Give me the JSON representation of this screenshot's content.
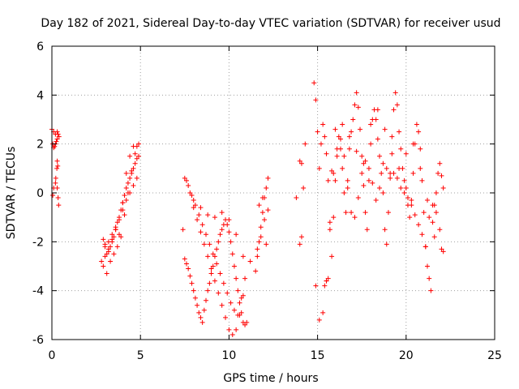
{
  "chart_data": {
    "type": "scatter",
    "title": "Day 182 of 2021, Sidereal Day-to-day VTEC variation (SDTVAR) for receiver usud",
    "xlabel": "GPS time / hours",
    "ylabel": "SDTVAR / TECUs",
    "xlim": [
      0,
      25
    ],
    "ylim": [
      -6,
      6
    ],
    "xticks": [
      "0",
      "5",
      "10",
      "15",
      "20",
      "25"
    ],
    "yticks": [
      "-6",
      "-4",
      "-2",
      "0",
      "2",
      "4",
      "6"
    ],
    "grid": true,
    "marker": "+",
    "color": "#ff0000",
    "series": [
      {
        "x": [
          0.0,
          0.1,
          0.2,
          0.3,
          0.4,
          0.2,
          0.15,
          0.1,
          0.05,
          0.25,
          0.3,
          0.35,
          0.28,
          0.22,
          0.3,
          0.35,
          0.38,
          0.3,
          0.33,
          0.1,
          0.05,
          0.2
        ],
        "y": [
          2.6,
          2.5,
          2.4,
          2.2,
          2.3,
          2.0,
          1.9,
          1.85,
          2.0,
          2.1,
          2.5,
          2.4,
          1.0,
          0.6,
          0.2,
          -0.2,
          -0.5,
          1.3,
          1.1,
          0.2,
          -0.1,
          0.4
        ]
      },
      {
        "x": [
          2.8,
          2.9,
          3.0,
          3.1,
          3.2,
          3.3,
          3.4,
          3.5,
          3.6,
          3.7,
          3.8,
          3.9,
          4.0,
          4.1,
          4.2,
          4.3,
          4.4,
          4.5,
          4.6,
          4.7,
          4.8,
          4.9,
          3.0,
          3.2,
          3.4,
          3.6,
          3.8,
          4.0,
          4.2,
          4.4,
          4.6,
          4.8,
          3.1,
          3.3,
          3.5,
          3.7,
          3.9,
          4.1,
          4.3,
          4.5,
          4.7,
          4.9,
          2.9,
          3.0,
          3.2,
          3.4,
          3.6,
          3.8,
          4.0,
          4.2,
          4.4,
          4.6,
          4.8
        ],
        "y": [
          -2.8,
          -3.0,
          -2.6,
          -2.5,
          -2.3,
          -2.2,
          -2.0,
          -1.8,
          -1.5,
          -1.2,
          -1.0,
          -0.7,
          -0.4,
          -0.1,
          0.2,
          0.4,
          0.6,
          0.8,
          1.0,
          1.2,
          1.4,
          1.5,
          -2.2,
          -2.0,
          -1.7,
          -1.4,
          -1.1,
          -0.7,
          -0.3,
          0.0,
          0.3,
          0.6,
          -3.3,
          -2.8,
          -2.5,
          -2.2,
          -1.8,
          -0.9,
          0.0,
          0.9,
          1.6,
          2.0,
          -1.9,
          -2.1,
          -2.4,
          -1.9,
          -1.5,
          -1.7,
          -0.4,
          0.8,
          1.5,
          1.9,
          1.9
        ]
      },
      {
        "x": [
          7.4,
          7.5,
          7.6,
          7.7,
          7.8,
          7.9,
          8.0,
          8.1,
          8.2,
          8.3,
          8.4,
          8.5,
          8.6,
          8.7,
          8.8,
          8.9,
          9.0,
          9.1,
          9.2,
          9.3,
          9.4,
          9.5,
          9.6,
          9.7,
          9.8,
          9.9,
          10.0,
          10.1,
          10.2,
          10.3,
          10.4,
          10.5,
          10.6,
          10.7,
          10.8,
          10.9,
          11.0,
          7.5,
          7.7,
          7.9,
          8.1,
          8.3,
          8.5,
          8.7,
          8.9,
          9.1,
          9.3,
          9.5,
          9.7,
          9.9,
          10.1,
          10.3,
          10.5,
          10.7,
          10.9,
          7.6,
          7.8,
          8.0,
          8.2,
          8.4,
          8.6,
          8.8,
          9.0,
          9.2,
          9.4,
          9.6,
          9.8,
          10.0,
          10.2,
          10.4,
          10.6,
          10.8,
          8.0,
          8.4,
          8.8,
          9.2,
          9.6,
          10.0,
          10.4,
          10.8,
          11.2
        ],
        "y": [
          -1.5,
          -2.7,
          -2.9,
          -3.1,
          -3.4,
          -3.7,
          -4.0,
          -4.3,
          -4.6,
          -4.9,
          -5.1,
          -5.3,
          -4.8,
          -4.4,
          -4.0,
          -3.7,
          -3.3,
          -3.0,
          -2.6,
          -2.3,
          -2.0,
          -1.7,
          -1.5,
          -1.3,
          -1.1,
          -1.3,
          -1.6,
          -2.0,
          -2.5,
          -3.0,
          -3.5,
          -4.0,
          -4.5,
          -4.9,
          -5.3,
          -5.4,
          -5.3,
          0.6,
          0.3,
          -0.1,
          -0.5,
          -0.9,
          -1.3,
          -1.7,
          -2.1,
          -2.5,
          -2.9,
          -3.3,
          -3.7,
          -4.1,
          -4.5,
          -4.8,
          -5.0,
          -4.3,
          -3.5,
          0.5,
          0.0,
          -0.6,
          -1.1,
          -1.6,
          -2.1,
          -2.6,
          -3.1,
          -3.6,
          -4.1,
          -4.6,
          -5.1,
          -5.6,
          -5.8,
          -5.6,
          -5.0,
          -4.2,
          -0.3,
          -0.6,
          -0.9,
          -1.0,
          -0.8,
          -1.1,
          -1.7,
          -2.6,
          -2.8
        ]
      },
      {
        "x": [
          11.5,
          11.6,
          11.7,
          11.8,
          11.9,
          12.0,
          12.1,
          12.2,
          11.6,
          11.8,
          12.0,
          12.2,
          11.7,
          11.9,
          12.1
        ],
        "y": [
          -3.2,
          -2.6,
          -2.0,
          -1.4,
          -0.8,
          -0.2,
          0.2,
          0.6,
          -2.3,
          -1.8,
          -1.1,
          -0.7,
          -0.5,
          -0.2,
          -2.1
        ]
      },
      {
        "x": [
          13.8,
          14.0,
          14.1,
          14.2,
          14.1,
          14.0,
          14.3
        ],
        "y": [
          -0.2,
          1.3,
          1.2,
          0.2,
          -1.8,
          -2.1,
          2.0
        ]
      },
      {
        "x": [
          14.8,
          14.9,
          15.0,
          15.1,
          15.2,
          15.3,
          15.4,
          15.5,
          15.6,
          15.7,
          15.8,
          15.9,
          16.0,
          16.1,
          16.2,
          16.3,
          16.4,
          16.5,
          16.6,
          16.7,
          16.8,
          16.9,
          17.0,
          17.1,
          17.2,
          17.3,
          17.4,
          17.5,
          17.6,
          17.7,
          17.8,
          17.9,
          18.0,
          18.1,
          18.2,
          18.3,
          18.4,
          18.5,
          18.6,
          18.7,
          18.8,
          18.9,
          19.0,
          19.1,
          19.2,
          19.3,
          19.4,
          19.5,
          19.6,
          19.7,
          19.8,
          19.9,
          20.0,
          20.1,
          20.2,
          20.3,
          20.4,
          20.5,
          20.6,
          20.7,
          20.8,
          20.9,
          21.0,
          21.1,
          21.2,
          21.3,
          21.4,
          21.5,
          21.6,
          21.7,
          21.8,
          21.9,
          22.0,
          22.1
        ],
        "y": [
          4.5,
          3.8,
          2.5,
          1.0,
          2.0,
          2.8,
          2.3,
          1.6,
          0.5,
          -1.5,
          -2.6,
          -1.0,
          0.5,
          1.5,
          2.3,
          1.8,
          1.0,
          0.0,
          -0.8,
          0.5,
          1.8,
          2.5,
          3.0,
          3.6,
          4.1,
          3.5,
          2.6,
          1.5,
          0.3,
          -0.8,
          -1.5,
          0.5,
          2.0,
          3.0,
          3.4,
          3.0,
          2.2,
          1.5,
          0.8,
          0.0,
          -1.5,
          -2.1,
          -0.8,
          0.8,
          2.3,
          3.4,
          4.1,
          3.6,
          2.5,
          1.8,
          1.0,
          0.5,
          0.2,
          -0.5,
          -1.0,
          -0.3,
          0.8,
          2.0,
          2.8,
          2.5,
          1.8,
          0.5,
          -0.8,
          -2.2,
          -3.0,
          -3.5,
          -4.0,
          -1.2,
          -0.5,
          0.0,
          0.8,
          1.2,
          0.7,
          0.2
        ]
      },
      {
        "x": [
          14.9,
          15.1,
          15.3,
          15.5,
          15.7,
          15.9,
          16.1,
          16.3,
          16.5,
          16.7,
          16.9,
          17.1,
          17.3,
          17.5,
          17.7,
          17.9,
          18.1,
          18.3,
          18.5,
          18.7,
          18.9,
          19.1,
          19.3,
          19.5,
          19.7,
          19.9,
          20.1,
          20.3,
          20.5,
          20.7,
          20.9,
          21.1,
          21.3,
          21.5,
          21.7,
          21.9,
          22.1
        ],
        "y": [
          -3.8,
          -5.2,
          -4.9,
          -3.6,
          -1.2,
          0.8,
          1.8,
          2.2,
          1.5,
          0.2,
          -0.8,
          -1.0,
          -0.2,
          0.8,
          1.3,
          1.0,
          0.4,
          -0.3,
          0.2,
          1.2,
          1.0,
          0.6,
          0.8,
          0.6,
          0.2,
          0.0,
          -0.2,
          -0.5,
          -0.9,
          -1.3,
          -1.7,
          -2.2,
          -1.0,
          -0.5,
          -0.8,
          -1.5,
          -2.4
        ]
      },
      {
        "x": [
          15.4,
          15.5,
          15.6,
          15.8,
          16.0,
          16.4,
          16.8,
          17.2,
          17.6,
          18.0,
          18.4,
          18.8,
          19.2,
          19.6,
          20.0,
          20.4,
          20.8,
          21.2,
          21.6,
          22.0
        ],
        "y": [
          -3.8,
          -3.6,
          -3.5,
          0.9,
          2.6,
          2.8,
          2.3,
          1.7,
          1.2,
          2.8,
          3.4,
          2.6,
          1.6,
          1.0,
          1.6,
          2.0,
          1.0,
          -0.3,
          -1.8,
          -2.3
        ]
      }
    ]
  }
}
